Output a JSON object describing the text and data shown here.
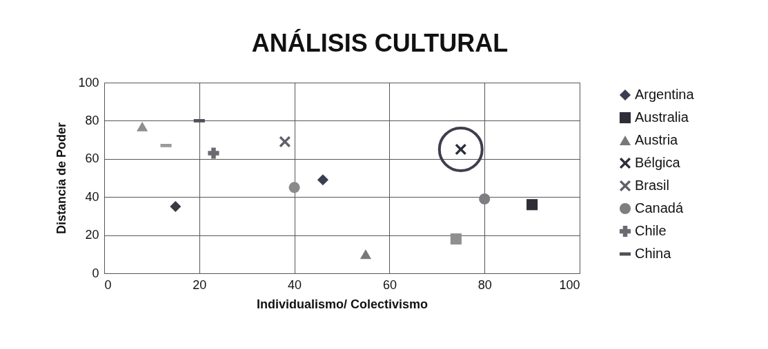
{
  "chart_data": {
    "type": "scatter",
    "title": "ANÁLISIS CULTURAL",
    "xlabel": "Individualismo/ Colectivismo",
    "ylabel": "Distancia de Poder",
    "xlim": [
      0,
      100
    ],
    "xticks": [
      0,
      20,
      40,
      60,
      80,
      100
    ],
    "ylim": [
      0,
      100
    ],
    "yticks": [
      0,
      20,
      40,
      60,
      80,
      100
    ],
    "grid": true,
    "legend": "right",
    "series": [
      {
        "name": "Argentina",
        "color": "#3b3e50",
        "marker": "diamond",
        "x": [
          46
        ],
        "values": [
          49
        ]
      },
      {
        "name": "Australia",
        "color": "#2e2f36",
        "marker": "square",
        "x": [
          90
        ],
        "values": [
          36
        ]
      },
      {
        "name": "Austria",
        "color": "#77777c",
        "marker": "triangle",
        "x": [
          55
        ],
        "values": [
          10
        ]
      },
      {
        "name": "Bélgica",
        "color": "#2a2d3a",
        "marker": "cross",
        "x": [
          75
        ],
        "values": [
          65
        ]
      },
      {
        "name": "Brasil",
        "color": "#5f606a",
        "marker": "cross",
        "x": [
          38
        ],
        "values": [
          69
        ]
      },
      {
        "name": "Canadá",
        "color": "#7e7e82",
        "marker": "circle",
        "x": [
          80
        ],
        "values": [
          39
        ]
      },
      {
        "name": "Chile",
        "color": "#6a6a70",
        "marker": "plus",
        "x": [
          23
        ],
        "values": [
          63
        ]
      },
      {
        "name": "China",
        "color": "#505058",
        "marker": "square",
        "x": [
          20
        ],
        "values": [
          80
        ]
      },
      {
        "color": "#8e8e90",
        "marker": "triangle",
        "x": [
          8
        ],
        "values": [
          77
        ]
      },
      {
        "color": "#9a9a9c",
        "marker": "square",
        "x": [
          13
        ],
        "values": [
          67
        ]
      },
      {
        "color": "#3a3a46",
        "marker": "diamond",
        "x": [
          15
        ],
        "values": [
          35
        ]
      },
      {
        "color": "#8a8a8c",
        "marker": "circle",
        "x": [
          40
        ],
        "values": [
          45
        ]
      },
      {
        "color": "#8f8f92",
        "marker": "square",
        "x": [
          74
        ],
        "values": [
          18
        ]
      }
    ]
  }
}
